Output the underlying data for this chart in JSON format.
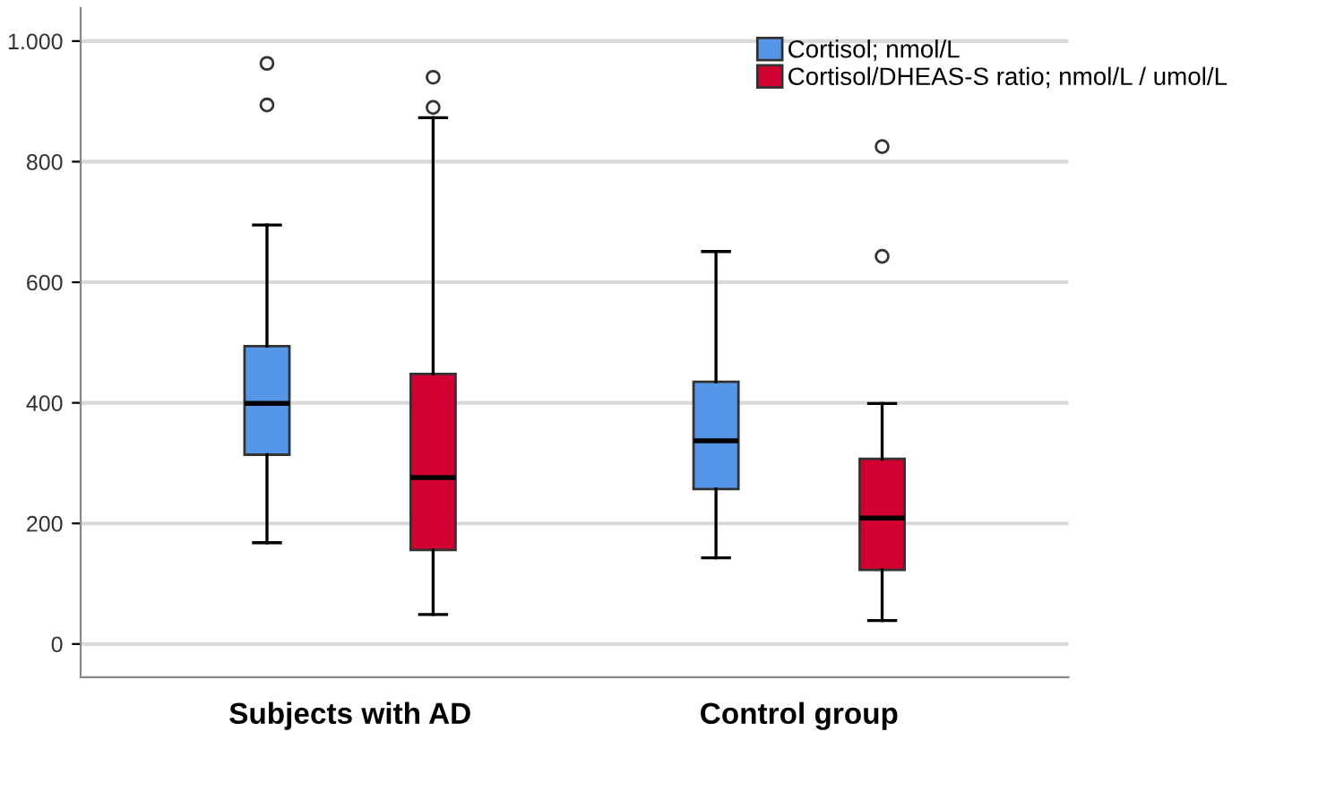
{
  "chart_data": {
    "type": "box",
    "categories": [
      "Subjects with AD",
      "Control group"
    ],
    "series": [
      {
        "name": "Cortisol; nmol/L",
        "color": "#5596e6",
        "boxes": [
          {
            "low": 168,
            "q1": 314,
            "median": 399,
            "q3": 494,
            "high": 695,
            "outliers": [
              894,
              963
            ]
          },
          {
            "low": 143,
            "q1": 257,
            "median": 337,
            "q3": 435,
            "high": 651
          }
        ]
      },
      {
        "name": "Cortisol/DHEAS-S ratio; nmol/L / umol/L",
        "color": "#d20032",
        "boxes": [
          {
            "low": 49,
            "q1": 156,
            "median": 276,
            "q3": 448,
            "high": 873,
            "outliers": [
              890,
              940
            ]
          },
          {
            "low": 39,
            "q1": 123,
            "median": 209,
            "q3": 307,
            "high": 399,
            "outliers": [
              643,
              825
            ]
          }
        ]
      }
    ],
    "ylim": [
      -55,
      1055
    ],
    "yticks": [
      0,
      200,
      400,
      600,
      800,
      {
        "value": 1000,
        "label": "1.000"
      }
    ],
    "grid": "y",
    "legend": "top right"
  }
}
